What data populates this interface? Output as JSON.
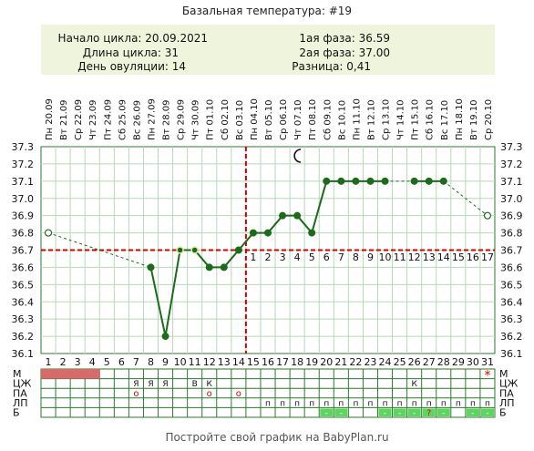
{
  "title": "Базальная температура: #19",
  "info": {
    "cycle_start": "Начало цикла: 20.09.2021",
    "cycle_length": "Длина цикла: 31",
    "ovulation_day": "День овуляции: 14",
    "phase1": "1ая фаза: 36.59",
    "phase2": "2ая фаза: 37.00",
    "difference": "Разница: 0,41"
  },
  "footer": "Постройте свой график на BabyPlan.ru",
  "colors": {
    "line": "#1a6b1a",
    "point": "#1a6b1a",
    "ovulation_line": "#d40000",
    "phase_numbers": "#c86060",
    "info_bg": "#eef5dc",
    "menstruation": "#d96a6a",
    "grid": "#b8d8b8",
    "table_border": "#2d7a2d",
    "badge_green": "#5cd65c",
    "badge_text": "#ffffff"
  },
  "chart_data": {
    "type": "line",
    "title": "Базальная температура: #19",
    "x_day_numbers": [
      "1",
      "2",
      "3",
      "4",
      "5",
      "6",
      "7",
      "8",
      "9",
      "10",
      "11",
      "12",
      "13",
      "14",
      "15",
      "16",
      "17",
      "18",
      "19",
      "20",
      "21",
      "22",
      "23",
      "24",
      "25",
      "26",
      "27",
      "28",
      "29",
      "30",
      "31"
    ],
    "x_weekday_dates": [
      "Пн 20.09",
      "Вт 21.09",
      "Ср 22.09",
      "Чт 23.09",
      "Пт 24.09",
      "Сб 25.09",
      "Вс 26.09",
      "Пн 27.09",
      "Вт 28.09",
      "Ср 29.09",
      "Чт 30.09",
      "Пт 01.10",
      "Сб 02.10",
      "Вс 03.10",
      "Пн 04.10",
      "Вт 05.10",
      "Ср 06.10",
      "Чт 07.10",
      "Пт 08.10",
      "Сб 09.10",
      "Вс 10.10",
      "Пн 11.10",
      "Вт 12.10",
      "Ср 13.10",
      "Чт 14.10",
      "Пт 15.10",
      "Сб 16.10",
      "Вс 17.10",
      "Пн 18.10",
      "Вт 19.10",
      "Ср 20.10"
    ],
    "ylim": [
      36.1,
      37.3
    ],
    "y_ticks": [
      "37.3",
      "37.2",
      "37.1",
      "37.0",
      "36.9",
      "36.8",
      "36.7",
      "36.6",
      "36.5",
      "36.4",
      "36.3",
      "36.2",
      "36.1"
    ],
    "coverline": 36.7,
    "ovulation_day": 14,
    "phase2_labels": [
      "1",
      "2",
      "3",
      "4",
      "5",
      "6",
      "7",
      "8",
      "9",
      "10",
      "11",
      "12",
      "13",
      "14",
      "15",
      "16",
      "17"
    ],
    "moon_day": 18,
    "series": [
      {
        "values": [
          36.8,
          null,
          null,
          null,
          null,
          null,
          null,
          36.6,
          36.2,
          36.7,
          36.7,
          36.6,
          36.6,
          36.7,
          36.8,
          36.8,
          36.9,
          36.9,
          36.8,
          37.1,
          37.1,
          37.1,
          37.1,
          37.1,
          null,
          37.1,
          37.1,
          37.1,
          null,
          null,
          36.9
        ],
        "hollow_days": [
          1,
          31
        ],
        "ringed_days": [
          10,
          11
        ]
      }
    ]
  },
  "table": {
    "row_labels": [
      "М",
      "ЦЖ",
      "ПА",
      "ЛП",
      "Б"
    ],
    "menstruation_days": [
      1,
      2,
      3,
      4
    ],
    "menstruation_star_day": 31,
    "star": "*",
    "cervical_fluid": [
      {
        "day": 7,
        "text": "Я"
      },
      {
        "day": 8,
        "text": "Я"
      },
      {
        "day": 9,
        "text": "Я"
      },
      {
        "day": 11,
        "text": "В"
      },
      {
        "day": 12,
        "text": "К"
      },
      {
        "day": 26,
        "text": "К"
      }
    ],
    "intercourse": [
      {
        "day": 7,
        "text": "о"
      },
      {
        "day": 12,
        "text": "о"
      },
      {
        "day": 14,
        "text": "о"
      }
    ],
    "lp_text": "п",
    "lp_days": [
      16,
      17,
      18,
      19,
      20,
      21,
      22,
      23,
      24,
      25,
      26,
      27,
      28,
      29,
      30,
      31
    ],
    "b_minus": "-",
    "b_question": "?",
    "b_minus_days": [
      20,
      21,
      24,
      25,
      26,
      28,
      30,
      31
    ],
    "b_question_days": [
      27
    ]
  }
}
